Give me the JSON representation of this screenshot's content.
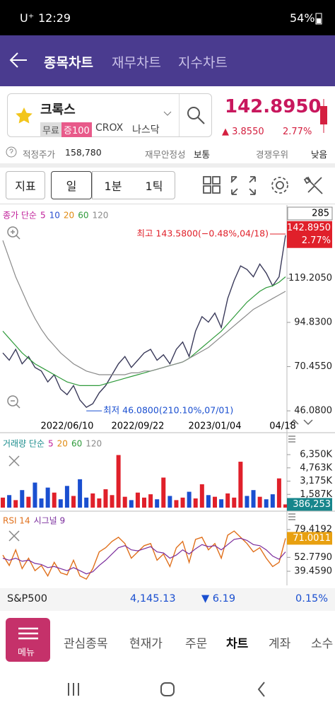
{
  "status_bar": {
    "carrier": "U⁺",
    "time": "12:29",
    "battery": "54%"
  },
  "header": {
    "tabs": [
      "종목차트",
      "재무차트",
      "지수차트"
    ]
  },
  "stock": {
    "name": "크록스",
    "badges": [
      "무료",
      "증100"
    ],
    "ticker": "CROX",
    "market": "나스닥",
    "price": "142.8950",
    "change": "▲ 3.8550",
    "change_pct": "2.77%"
  },
  "info": {
    "fair_price_label": "적정주가",
    "fair_price": "158,780",
    "stability_label": "재무안정성",
    "stability": "보통",
    "moat_label": "경쟁우위",
    "moat": "낮음"
  },
  "toolbar": {
    "buttons": [
      "지표",
      "일",
      "1분",
      "1틱"
    ]
  },
  "chart_data": [
    {
      "type": "line",
      "legend_label": "종가 단순",
      "ma_periods": [
        5,
        10,
        20,
        60,
        120
      ],
      "ma_colors": [
        "#c0209a",
        "#2a4fd0",
        "#e08a10",
        "#2e9a3a",
        "#8a8a8a"
      ],
      "period_count": "285",
      "categories": [
        null,
        null,
        null,
        null,
        null,
        null,
        null,
        null,
        null,
        null,
        "2022/06/10",
        null,
        null,
        null,
        null,
        null,
        null,
        null,
        null,
        null,
        null,
        "2022/09/22",
        null,
        null,
        null,
        null,
        null,
        null,
        null,
        null,
        null,
        null,
        null,
        "2023/01/04",
        null,
        null,
        null,
        null,
        null,
        null,
        null,
        null,
        null,
        null,
        "04/18"
      ],
      "series": [
        {
          "color": "#3a3a5a",
          "values": [
            78,
            74,
            80,
            72,
            76,
            70,
            68,
            62,
            66,
            58,
            55,
            60,
            52,
            48,
            50,
            56,
            60,
            66,
            72,
            76,
            70,
            74,
            78,
            80,
            74,
            77,
            72,
            80,
            84,
            76,
            90,
            98,
            95,
            100,
            92,
            108,
            118,
            126,
            124,
            120,
            127,
            122,
            115,
            120,
            142.895
          ]
        },
        {
          "color": "#2e9a3a",
          "values": [
            90,
            86,
            82,
            78,
            75,
            72,
            70,
            68,
            66,
            64,
            62,
            61,
            60,
            60,
            60,
            60,
            61,
            62,
            63,
            64,
            65,
            66,
            67,
            68,
            69,
            70,
            71,
            72,
            73,
            75,
            78,
            81,
            84,
            87,
            90,
            94,
            98,
            102,
            106,
            109,
            112,
            114,
            115,
            117,
            120
          ]
        },
        {
          "color": "#8a8a8a",
          "values": [
            140,
            130,
            120,
            112,
            104,
            97,
            91,
            86,
            82,
            78,
            75,
            72,
            70,
            68,
            67,
            66,
            66,
            66,
            66,
            66,
            67,
            67,
            68,
            68,
            69,
            70,
            71,
            72,
            73,
            75,
            77,
            79,
            81,
            84,
            87,
            90,
            93,
            96,
            99,
            102,
            104,
            106,
            108,
            110,
            112
          ]
        }
      ],
      "ylim": [
        42.6,
        157.6
      ],
      "yticks": [
        {
          "value": 46.08,
          "label": "46.0800"
        },
        {
          "value": 70.455,
          "label": "70.4550"
        },
        {
          "value": 94.83,
          "label": "94.8300"
        },
        {
          "value": 119.205,
          "label": "119.2050"
        }
      ],
      "current": {
        "value": 142.895,
        "label": "142.8950",
        "change_label": "2.77%"
      },
      "high": {
        "value": 143.58,
        "label": "최고 143.5800(−0.48%,04/18)"
      },
      "low": {
        "value": 46.08,
        "label": "최저 46.0800(210.10%,07/01)"
      },
      "up_color": "#e0202a",
      "down_color": "#1a4fd0"
    },
    {
      "type": "bar",
      "legend_label": "거래량 단순",
      "ma_periods": [
        5,
        20,
        60,
        120
      ],
      "ma_colors": [
        "#c0209a",
        "#e08a10",
        "#2e9a3a",
        "#8a8a8a"
      ],
      "values": [
        1200,
        1500,
        900,
        2100,
        1300,
        3000,
        1100,
        2400,
        1800,
        1000,
        2600,
        1400,
        3400,
        1200,
        1700,
        1100,
        2200,
        1500,
        6300,
        1300,
        900,
        1800,
        1200,
        1600,
        1000,
        3600,
        1400,
        900,
        1200,
        1900,
        1100,
        2800,
        1500,
        1300,
        1000,
        1700,
        1200,
        5500,
        1400,
        2100,
        1300,
        1000,
        1600,
        3500,
        386.253
      ],
      "ylim": [
        0,
        8300
      ],
      "yticks": [
        {
          "value": 6350,
          "label": "6,350K"
        },
        {
          "value": 4763,
          "label": "4,763K"
        },
        {
          "value": 3175,
          "label": "3,175K"
        },
        {
          "value": 1587,
          "label": "1,587K"
        }
      ],
      "current": {
        "value": 386.253,
        "label": "386,253"
      },
      "current_color": "#17868c"
    },
    {
      "type": "line",
      "series": [
        {
          "name": "RSI 14",
          "color": "#e0701c",
          "values": [
            55,
            45,
            60,
            42,
            52,
            40,
            45,
            35,
            48,
            38,
            36,
            50,
            35,
            32,
            42,
            58,
            62,
            68,
            72,
            66,
            52,
            58,
            64,
            66,
            50,
            56,
            44,
            62,
            68,
            48,
            70,
            72,
            60,
            66,
            52,
            74,
            78,
            72,
            66,
            58,
            62,
            52,
            44,
            48,
            71.0011
          ]
        },
        {
          "name": "시그널 9",
          "color": "#7a2c9c",
          "values": [
            52,
            50,
            52,
            49,
            50,
            47,
            46,
            43,
            44,
            42,
            40,
            43,
            40,
            37,
            39,
            45,
            50,
            56,
            62,
            64,
            60,
            59,
            61,
            63,
            58,
            57,
            52,
            55,
            60,
            56,
            61,
            65,
            63,
            64,
            60,
            65,
            70,
            71,
            69,
            65,
            64,
            60,
            54,
            51,
            58
          ]
        }
      ],
      "ylim": [
        27.3,
        93.6
      ],
      "yticks": [
        {
          "value": 39.459,
          "label": "39.4590"
        },
        {
          "value": 52.779,
          "label": "52.7790"
        },
        79.4192
      ],
      "current": 71.0011,
      "current_color": "#e8a010"
    }
  ],
  "index_bar": {
    "name": "S&P500",
    "value": "4,145.13",
    "change": "▼ 6.19",
    "change_pct": "0.15%"
  },
  "nav": {
    "menu": "메뉴",
    "items": [
      "관심종목",
      "현재가",
      "주문",
      "차트",
      "계좌",
      "소수"
    ]
  }
}
